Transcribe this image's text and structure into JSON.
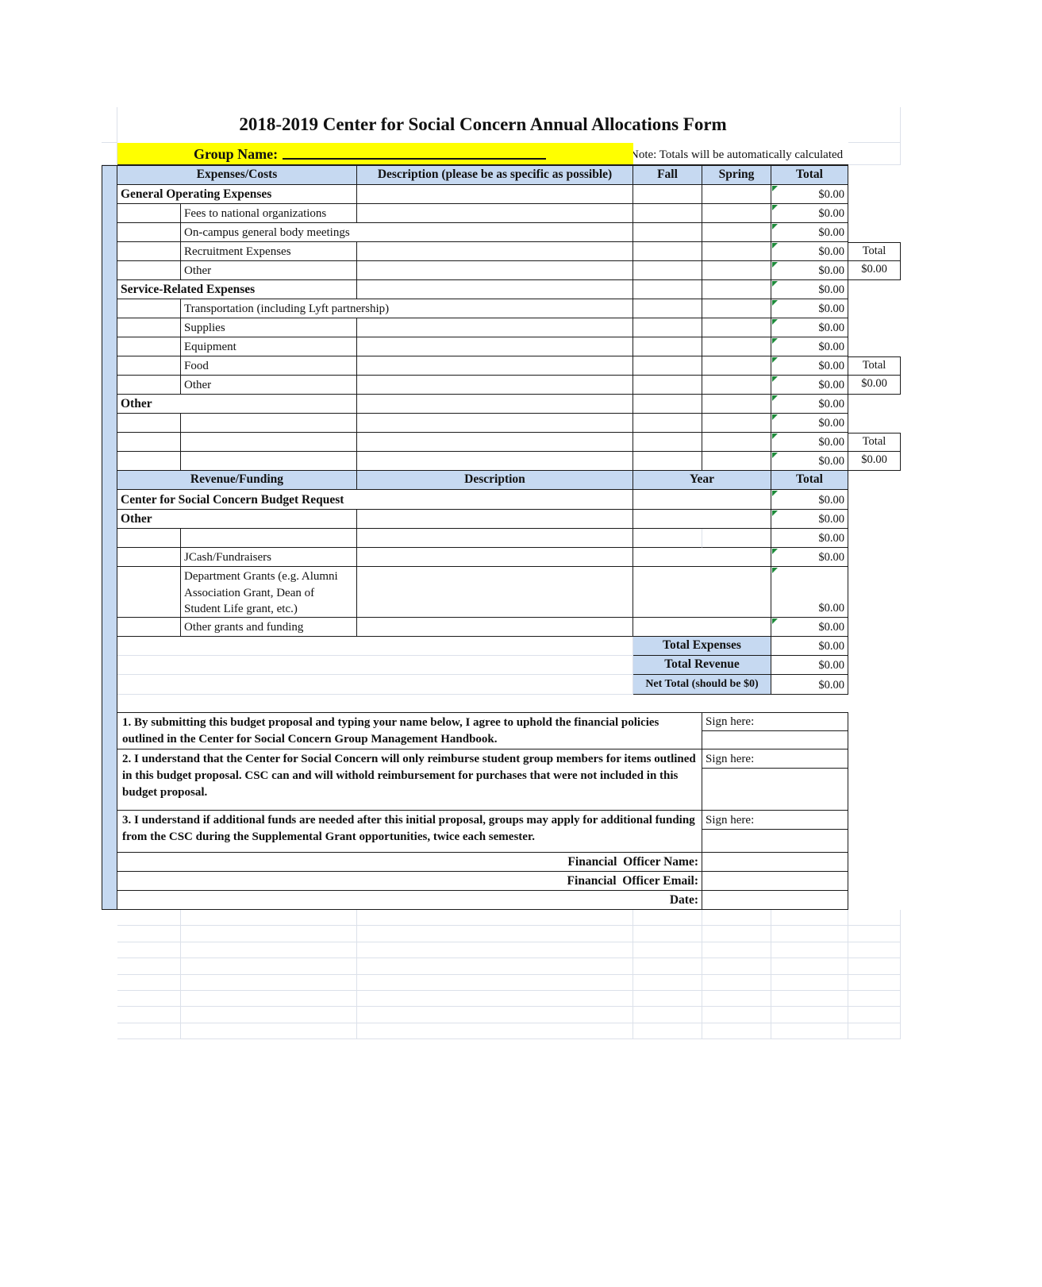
{
  "title": "2018-2019 Center for Social Concern Annual Allocations Form",
  "group": {
    "label": "Group Name:",
    "note": "Note: Totals will be automatically calculated"
  },
  "expense": {
    "header": {
      "costs": "Expenses/Costs",
      "description": "Description (please be as specific as possible)",
      "fall": "Fall",
      "spring": "Spring",
      "total": "Total"
    },
    "rows": [
      {
        "label": "General Operating Expenses",
        "total": "$0.00"
      },
      {
        "label": "Fees to national organizations",
        "total": "$0.00"
      },
      {
        "label": "On-campus general body meetings",
        "total": "$0.00"
      },
      {
        "label": "Recruitment Expenses",
        "total": "$0.00",
        "side": "Total"
      },
      {
        "label": "Other",
        "total": "$0.00",
        "side": "$0.00"
      },
      {
        "label": "Service-Related Expenses",
        "total": "$0.00"
      },
      {
        "label": "Transportation (including Lyft partnership)",
        "total": "$0.00"
      },
      {
        "label": "Supplies",
        "total": "$0.00"
      },
      {
        "label": "Equipment",
        "total": "$0.00"
      },
      {
        "label": "Food",
        "total": "$0.00",
        "side": "Total"
      },
      {
        "label": "Other",
        "total": "$0.00",
        "side": "$0.00"
      },
      {
        "label": "Other",
        "total": "$0.00"
      },
      {
        "label": "",
        "total": "$0.00"
      },
      {
        "label": "",
        "total": "$0.00",
        "side": "Total"
      },
      {
        "label": "",
        "total": "$0.00",
        "side": "$0.00"
      }
    ]
  },
  "revenue": {
    "header": {
      "funding": "Revenue/Funding",
      "description": "Description",
      "year": "Year",
      "total": "Total"
    },
    "rows": [
      {
        "label": "Center for Social Concern Budget Request",
        "total": "$0.00"
      },
      {
        "label": "Other",
        "total": "$0.00"
      },
      {
        "label": "",
        "total": "$0.00"
      },
      {
        "label": "JCash/Fundraisers",
        "total": "$0.00"
      },
      {
        "label": "Department Grants (e.g. Alumni Association Grant, Dean of Student Life grant, etc.)",
        "total": "$0.00"
      },
      {
        "label": "Other grants and funding",
        "total": "$0.00"
      }
    ]
  },
  "summary": {
    "rows": [
      {
        "label": "Total Expenses",
        "value": "$0.00"
      },
      {
        "label": "Total Revenue",
        "value": "$0.00"
      },
      {
        "label": "Net Total (should be $0)",
        "value": "$0.00"
      }
    ]
  },
  "agreements": [
    {
      "text": "1. By submitting this budget proposal and typing your name below, I agree to uphold the financial policies outlined in the Center for Social Concern Group Management Handbook.",
      "sign": "Sign here:"
    },
    {
      "text": "2. I understand that the Center for Social Concern will only reimburse student group members for items outlined in this budget proposal. CSC can and will withold reimbursement for purchases that were not included in this budget proposal.",
      "sign": "Sign here:"
    },
    {
      "text": "3. I understand if additional funds are needed after this initial proposal, groups may apply for additional funding from the CSC during the Supplemental Grant opportunities, twice each semester.",
      "sign": "Sign here:"
    }
  ],
  "officer": {
    "name": "Financial  Officer Name:",
    "email": "Financial  Officer Email:",
    "date": "Date:"
  }
}
